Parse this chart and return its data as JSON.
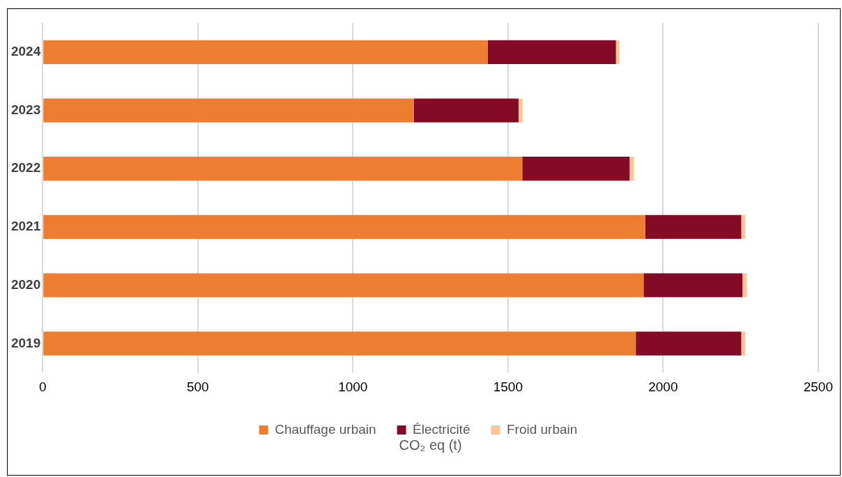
{
  "chart_data": {
    "type": "bar",
    "orientation": "horizontal",
    "stacked": true,
    "xlabel": "CO₂ eq (t)",
    "categories": [
      "2024",
      "2023",
      "2022",
      "2021",
      "2020",
      "2019"
    ],
    "series": [
      {
        "name": "Chauffage urbain",
        "color": "#ed7d31",
        "values": [
          1435,
          1197,
          1546,
          1943,
          1937,
          1912
        ]
      },
      {
        "name": "Électricité",
        "color": "#840a26",
        "values": [
          413,
          337,
          346,
          309,
          319,
          340
        ]
      },
      {
        "name": "Froid urbain",
        "color": "#f8c799",
        "values": [
          11,
          13,
          14,
          13,
          14,
          13
        ]
      }
    ],
    "xlim": [
      0,
      2500
    ],
    "xticks": [
      0,
      500,
      1000,
      1500,
      2000,
      2500
    ],
    "grid": "x",
    "legend": "bottom"
  }
}
